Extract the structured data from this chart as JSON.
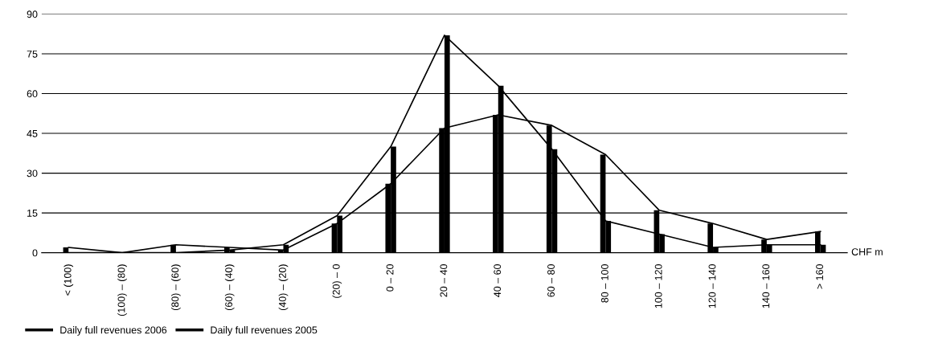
{
  "chart_data": {
    "type": "bar",
    "xlabel": "CHF m",
    "categories": [
      "< (100)",
      "(100) – (80)",
      "(80) – (60)",
      "(60) – (40)",
      "(40) – (20)",
      "(20) – 0",
      "0 – 20",
      "20 – 40",
      "40 – 60",
      "60 – 80",
      "80 – 100",
      "100 – 120",
      "120 – 140",
      "140 – 160",
      "> 160"
    ],
    "series": [
      {
        "color": "#000000",
        "values": [
          2,
          0,
          3,
          2,
          1,
          11,
          26,
          47,
          52,
          48,
          37,
          16,
          11,
          5,
          8
        ]
      },
      {
        "color": "#000000",
        "values": [
          0,
          0,
          0,
          1,
          3,
          14,
          40,
          82,
          63,
          39,
          12,
          7,
          2,
          3,
          3
        ]
      },
      {
        "type": "line",
        "name": "Daily full revenues 2006",
        "color": "#000000",
        "values": [
          2,
          0,
          3,
          2,
          1,
          11,
          26,
          47,
          52,
          48,
          37,
          16,
          11,
          5,
          8
        ]
      },
      {
        "type": "line",
        "name": "Daily full revenues 2005",
        "color": "#000000",
        "values": [
          0,
          0,
          0,
          1,
          3,
          14,
          40,
          82,
          63,
          39,
          12,
          7,
          2,
          3,
          3
        ]
      }
    ],
    "ylim": [
      0,
      90
    ],
    "yticks": [
      0,
      15,
      30,
      45,
      60,
      75,
      90
    ],
    "grid": "y",
    "legend": "bottom left",
    "marker": "none",
    "line_style": "solid"
  }
}
